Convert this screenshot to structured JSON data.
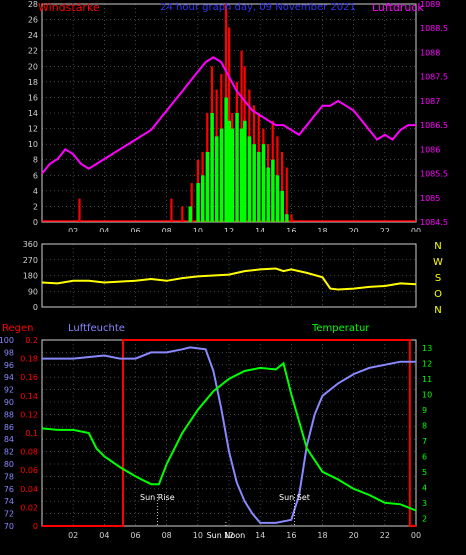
{
  "chart_data": [
    {
      "type": "line",
      "title": "24 hour graph day, 09 November 2021",
      "ylabel_left": "Windstärke",
      "ylabel_right": "Luftdruck",
      "x_ticks": [
        "02",
        "04",
        "06",
        "08",
        "10",
        "12",
        "14",
        "16",
        "18",
        "20",
        "22",
        "00"
      ],
      "xlim": [
        0,
        24
      ],
      "ylim_left": [
        0,
        28
      ],
      "y_ticks_left": [
        "0",
        "2",
        "4",
        "6",
        "8",
        "10",
        "12",
        "14",
        "16",
        "18",
        "20",
        "22",
        "24",
        "26",
        "28"
      ],
      "ylim_right": [
        1084.5,
        1089
      ],
      "y_ticks_right": [
        "1084.5",
        "1085",
        "1085.5",
        "1086",
        "1086.5",
        "1087",
        "1087.5",
        "1088",
        "1088.5",
        "1089"
      ],
      "series": [
        {
          "name": "Luftdruck",
          "color": "#ff00ff",
          "axis": "right",
          "x": [
            0,
            0.5,
            1,
            1.5,
            2,
            2.5,
            3,
            3.5,
            4,
            4.5,
            5,
            5.5,
            6,
            6.5,
            7,
            7.5,
            8,
            8.5,
            9,
            9.5,
            10,
            10.5,
            11,
            11.5,
            12,
            12.5,
            13,
            13.5,
            14,
            14.5,
            15,
            15.5,
            16,
            16.5,
            17,
            17.5,
            18,
            18.5,
            19,
            19.5,
            20,
            20.5,
            21,
            21.5,
            22,
            22.5,
            23,
            23.5,
            24
          ],
          "y": [
            1085.5,
            1085.7,
            1085.8,
            1086,
            1085.9,
            1085.7,
            1085.6,
            1085.7,
            1085.8,
            1085.9,
            1086,
            1086.1,
            1086.2,
            1086.3,
            1086.4,
            1086.6,
            1086.8,
            1087.0,
            1087.2,
            1087.4,
            1087.6,
            1087.8,
            1087.9,
            1087.8,
            1087.5,
            1087.2,
            1087.0,
            1086.8,
            1086.7,
            1086.6,
            1086.5,
            1086.5,
            1086.4,
            1086.3,
            1086.5,
            1086.7,
            1086.9,
            1086.9,
            1087.0,
            1086.9,
            1086.8,
            1086.6,
            1086.4,
            1086.2,
            1086.3,
            1086.2,
            1086.4,
            1086.5,
            1086.5
          ]
        },
        {
          "name": "Windböen",
          "color": "#ff0000",
          "axis": "left",
          "x": [
            2.4,
            8.3,
            9.0,
            9.6,
            10.0,
            10.3,
            10.6,
            10.9,
            11.2,
            11.5,
            11.8,
            12.0,
            12.2,
            12.5,
            12.8,
            13.0,
            13.3,
            13.6,
            13.9,
            14.2,
            14.5,
            14.8,
            15.1,
            15.4,
            15.7,
            16.0
          ],
          "y": [
            3,
            3,
            2,
            5,
            8,
            9,
            14,
            20,
            17,
            19,
            28,
            25,
            14,
            18,
            22,
            20,
            17,
            15,
            14,
            12,
            10,
            13,
            11,
            9,
            7,
            1
          ]
        },
        {
          "name": "Windstärke",
          "color": "#00ff00",
          "axis": "left",
          "x": [
            9.5,
            10.0,
            10.3,
            10.6,
            10.9,
            11.2,
            11.5,
            11.8,
            12.0,
            12.2,
            12.5,
            12.8,
            13.0,
            13.3,
            13.6,
            13.9,
            14.2,
            14.5,
            14.8,
            15.1,
            15.4,
            15.7
          ],
          "y": [
            2,
            5,
            6,
            9,
            14,
            11,
            12,
            16,
            13,
            12,
            14,
            12,
            13,
            11,
            10,
            9,
            10,
            7,
            8,
            6,
            4,
            1
          ]
        }
      ]
    },
    {
      "type": "line",
      "ylabel_right": "N W S O N",
      "direction_letters": [
        "N",
        "W",
        "S",
        "O",
        "N"
      ],
      "x_ticks": [
        "02",
        "04",
        "06",
        "08",
        "10",
        "12",
        "14",
        "16",
        "18",
        "20",
        "22",
        "00"
      ],
      "xlim": [
        0,
        24
      ],
      "ylim": [
        0,
        360
      ],
      "y_ticks": [
        "0",
        "90",
        "180",
        "270",
        "360"
      ],
      "series": [
        {
          "name": "Windrichtung",
          "color": "#ffff00",
          "x": [
            0,
            1,
            2,
            3,
            4,
            5,
            6,
            7,
            8,
            9,
            10,
            11,
            12,
            13,
            14,
            15,
            15.5,
            16,
            17,
            18,
            18.5,
            19,
            20,
            21,
            22,
            23,
            24
          ],
          "y": [
            140,
            135,
            150,
            150,
            140,
            145,
            150,
            160,
            150,
            165,
            175,
            180,
            185,
            205,
            215,
            220,
            205,
            215,
            195,
            170,
            105,
            100,
            105,
            115,
            120,
            135,
            130
          ]
        }
      ]
    },
    {
      "type": "line",
      "ylabel_left_1": "Regen",
      "ylabel_left_2": "Luftfeuchte",
      "ylabel_right": "Temperatur",
      "x_ticks": [
        "02",
        "04",
        "06",
        "08",
        "10",
        "12",
        "14",
        "16",
        "18",
        "20",
        "22",
        "00"
      ],
      "xlim": [
        0,
        24
      ],
      "y_ticks_humidity": [
        "70",
        "72",
        "74",
        "76",
        "78",
        "80",
        "82",
        "84",
        "86",
        "88",
        "90",
        "92",
        "94",
        "96",
        "98",
        "100"
      ],
      "ylim_humidity": [
        70,
        100
      ],
      "y_ticks_rain": [
        "0",
        "0.02",
        "0.04",
        "0.06",
        "0.08",
        "0.1",
        "0.12",
        "0.14",
        "0.16",
        "0.18",
        "0.2"
      ],
      "ylim_rain": [
        0,
        0.2
      ],
      "y_ticks_temperature": [
        "2",
        "3",
        "4",
        "5",
        "6",
        "7",
        "8",
        "9",
        "10",
        "11",
        "12",
        "13"
      ],
      "ylim_temperature": [
        1.5,
        13.5
      ],
      "annotations": [
        "Sun Rise",
        "Sun Set",
        "Sun Noon"
      ],
      "annotation_times": [
        7.4,
        16.2,
        11.8
      ],
      "series": [
        {
          "name": "Temperatur",
          "color": "#00ff00",
          "axis": "temperature",
          "x": [
            0,
            1,
            2,
            3,
            3.5,
            4,
            5,
            6,
            7,
            7.5,
            8,
            9,
            10,
            11,
            12,
            13,
            14,
            15,
            15.5,
            16,
            17,
            18,
            19,
            20,
            21,
            22,
            23,
            24
          ],
          "y": [
            7.8,
            7.7,
            7.7,
            7.5,
            6.5,
            6,
            5.3,
            4.7,
            4.2,
            4.2,
            5.5,
            7.5,
            9,
            10.2,
            11,
            11.5,
            11.7,
            11.6,
            12,
            10,
            6.5,
            5,
            4.5,
            3.9,
            3.5,
            3,
            2.9,
            2.5
          ]
        },
        {
          "name": "Luftfeuchte",
          "color": "#8888ff",
          "axis": "humidity",
          "x": [
            0,
            2,
            4,
            5,
            6,
            7,
            8,
            9,
            9.5,
            10.5,
            11,
            11.5,
            12,
            12.5,
            13,
            13.5,
            14,
            15,
            16,
            16.5,
            17,
            17.5,
            18,
            19,
            20,
            21,
            22,
            23,
            24
          ],
          "y": [
            97,
            97,
            97.5,
            97,
            97,
            98,
            98,
            98.5,
            98.8,
            98.5,
            95,
            89,
            82,
            77,
            74,
            72,
            70.5,
            70.5,
            71,
            75,
            83,
            88,
            91,
            93,
            94.5,
            95.5,
            96,
            96.5,
            96.5
          ]
        },
        {
          "name": "Regen",
          "color": "#ff0000",
          "axis": "rain",
          "x": [
            0,
            5.2,
            5.2,
            23.6,
            23.6,
            24
          ],
          "y": [
            0,
            0,
            0.2,
            0.2,
            0,
            0
          ]
        }
      ]
    }
  ],
  "labels": {
    "windstaerke": "Windstärke",
    "luftdruck": "Luftdruck",
    "title": "24 hour graph day, 09 November 2021",
    "regen": "Regen",
    "luftfeuchte": "Luftfeuchte",
    "temperatur": "Temperatur",
    "sun_rise": "Sun Rise",
    "sun_set": "Sun Set",
    "sun_noon": "Sun Noon"
  },
  "colors": {
    "wind_label": "#ff0000",
    "pressure": "#ff00ff",
    "title": "#3333ff",
    "gust": "#ff0000",
    "wind": "#00ff00",
    "direction": "#ffff00",
    "direction_axis": "#ffff00",
    "rain": "#ff0000",
    "humidity": "#8888ff",
    "temperature": "#00ff00",
    "frame": "#d0d0d0",
    "grid": "#707070",
    "tick_text": "#d0d0d0"
  }
}
